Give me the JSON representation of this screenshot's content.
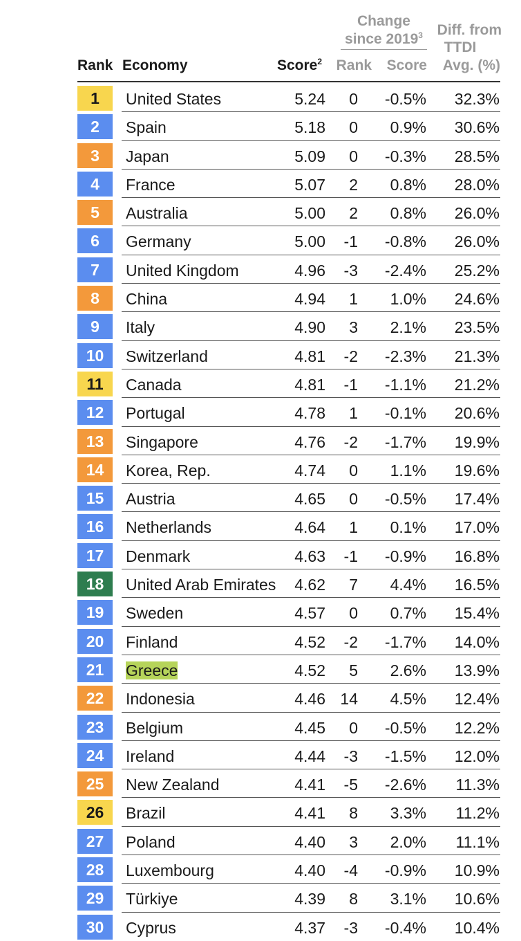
{
  "header": {
    "rank": "Rank",
    "economy": "Economy",
    "score": "Score",
    "score_note": "2",
    "change_line1": "Change",
    "change_line2": "since 2019",
    "change_note": "3",
    "change_rank": "Rank",
    "change_score": "Score",
    "diff_line1": "Diff. from",
    "diff_line2": "TTDI",
    "diff_line3": "Avg. (%)"
  },
  "colors": {
    "yellow": "#f8d64e",
    "blue": "#5b8def",
    "orange": "#f3993b",
    "green": "#2e7d4f",
    "highlight": "#b6d45a"
  },
  "rows": [
    {
      "rank": "1",
      "color": "yellow",
      "economy": "United States",
      "score": "5.24",
      "rank_change": "0",
      "score_change": "-0.5%",
      "diff": "32.3%"
    },
    {
      "rank": "2",
      "color": "blue",
      "economy": "Spain",
      "score": "5.18",
      "rank_change": "0",
      "score_change": "0.9%",
      "diff": "30.6%"
    },
    {
      "rank": "3",
      "color": "orange",
      "economy": "Japan",
      "score": "5.09",
      "rank_change": "0",
      "score_change": "-0.3%",
      "diff": "28.5%"
    },
    {
      "rank": "4",
      "color": "blue",
      "economy": "France",
      "score": "5.07",
      "rank_change": "2",
      "score_change": "0.8%",
      "diff": "28.0%"
    },
    {
      "rank": "5",
      "color": "orange",
      "economy": "Australia",
      "score": "5.00",
      "rank_change": "2",
      "score_change": "0.8%",
      "diff": "26.0%"
    },
    {
      "rank": "6",
      "color": "blue",
      "economy": "Germany",
      "score": "5.00",
      "rank_change": "-1",
      "score_change": "-0.8%",
      "diff": "26.0%"
    },
    {
      "rank": "7",
      "color": "blue",
      "economy": "United Kingdom",
      "score": "4.96",
      "rank_change": "-3",
      "score_change": "-2.4%",
      "diff": "25.2%"
    },
    {
      "rank": "8",
      "color": "orange",
      "economy": "China",
      "score": "4.94",
      "rank_change": "1",
      "score_change": "1.0%",
      "diff": "24.6%"
    },
    {
      "rank": "9",
      "color": "blue",
      "economy": "Italy",
      "score": "4.90",
      "rank_change": "3",
      "score_change": "2.1%",
      "diff": "23.5%"
    },
    {
      "rank": "10",
      "color": "blue",
      "economy": "Switzerland",
      "score": "4.81",
      "rank_change": "-2",
      "score_change": "-2.3%",
      "diff": "21.3%"
    },
    {
      "rank": "11",
      "color": "yellow",
      "economy": "Canada",
      "score": "4.81",
      "rank_change": "-1",
      "score_change": "-1.1%",
      "diff": "21.2%"
    },
    {
      "rank": "12",
      "color": "blue",
      "economy": "Portugal",
      "score": "4.78",
      "rank_change": "1",
      "score_change": "-0.1%",
      "diff": "20.6%"
    },
    {
      "rank": "13",
      "color": "orange",
      "economy": "Singapore",
      "score": "4.76",
      "rank_change": "-2",
      "score_change": "-1.7%",
      "diff": "19.9%"
    },
    {
      "rank": "14",
      "color": "orange",
      "economy": "Korea, Rep.",
      "score": "4.74",
      "rank_change": "0",
      "score_change": "1.1%",
      "diff": "19.6%"
    },
    {
      "rank": "15",
      "color": "blue",
      "economy": "Austria",
      "score": "4.65",
      "rank_change": "0",
      "score_change": "-0.5%",
      "diff": "17.4%"
    },
    {
      "rank": "16",
      "color": "blue",
      "economy": "Netherlands",
      "score": "4.64",
      "rank_change": "1",
      "score_change": "0.1%",
      "diff": "17.0%"
    },
    {
      "rank": "17",
      "color": "blue",
      "economy": "Denmark",
      "score": "4.63",
      "rank_change": "-1",
      "score_change": "-0.9%",
      "diff": "16.8%"
    },
    {
      "rank": "18",
      "color": "green",
      "economy": "United Arab Emirates",
      "score": "4.62",
      "rank_change": "7",
      "score_change": "4.4%",
      "diff": "16.5%"
    },
    {
      "rank": "19",
      "color": "blue",
      "economy": "Sweden",
      "score": "4.57",
      "rank_change": "0",
      "score_change": "0.7%",
      "diff": "15.4%"
    },
    {
      "rank": "20",
      "color": "blue",
      "economy": "Finland",
      "score": "4.52",
      "rank_change": "-2",
      "score_change": "-1.7%",
      "diff": "14.0%"
    },
    {
      "rank": "21",
      "color": "blue",
      "economy": "Greece",
      "score": "4.52",
      "rank_change": "5",
      "score_change": "2.6%",
      "diff": "13.9%",
      "highlight": true
    },
    {
      "rank": "22",
      "color": "orange",
      "economy": "Indonesia",
      "score": "4.46",
      "rank_change": "14",
      "score_change": "4.5%",
      "diff": "12.4%"
    },
    {
      "rank": "23",
      "color": "blue",
      "economy": "Belgium",
      "score": "4.45",
      "rank_change": "0",
      "score_change": "-0.5%",
      "diff": "12.2%"
    },
    {
      "rank": "24",
      "color": "blue",
      "economy": "Ireland",
      "score": "4.44",
      "rank_change": "-3",
      "score_change": "-1.5%",
      "diff": "12.0%"
    },
    {
      "rank": "25",
      "color": "orange",
      "economy": "New Zealand",
      "score": "4.41",
      "rank_change": "-5",
      "score_change": "-2.6%",
      "diff": "11.3%"
    },
    {
      "rank": "26",
      "color": "yellow",
      "economy": "Brazil",
      "score": "4.41",
      "rank_change": "8",
      "score_change": "3.3%",
      "diff": "11.2%"
    },
    {
      "rank": "27",
      "color": "blue",
      "economy": "Poland",
      "score": "4.40",
      "rank_change": "3",
      "score_change": "2.0%",
      "diff": "11.1%"
    },
    {
      "rank": "28",
      "color": "blue",
      "economy": "Luxembourg",
      "score": "4.40",
      "rank_change": "-4",
      "score_change": "-0.9%",
      "diff": "10.9%"
    },
    {
      "rank": "29",
      "color": "blue",
      "economy": "Türkiye",
      "score": "4.39",
      "rank_change": "8",
      "score_change": "3.1%",
      "diff": "10.6%"
    },
    {
      "rank": "30",
      "color": "blue",
      "economy": "Cyprus",
      "score": "4.37",
      "rank_change": "-3",
      "score_change": "-0.4%",
      "diff": "10.4%"
    }
  ]
}
